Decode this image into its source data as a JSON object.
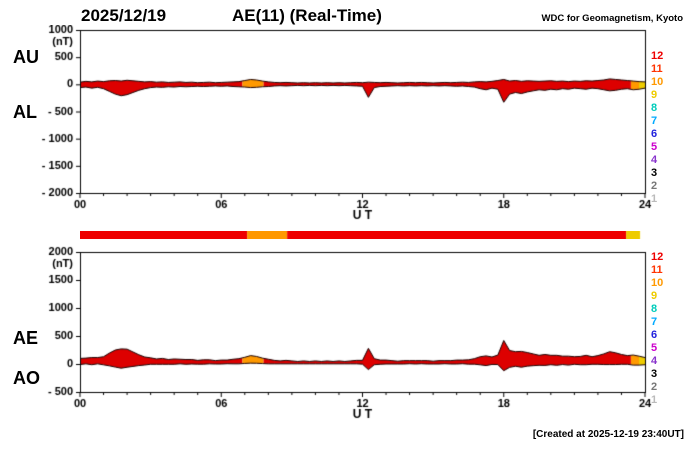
{
  "header": {
    "date": "2025/12/19",
    "title": "AE(11) (Real-Time)",
    "organization": "WDC for Geomagnetism, Kyoto"
  },
  "footer": {
    "created_note": "[Created at 2025-12-19 23:40UT]"
  },
  "legend": {
    "items": [
      {
        "label": "12",
        "color": "#ee0000"
      },
      {
        "label": "11",
        "color": "#ff3300"
      },
      {
        "label": "10",
        "color": "#ff9900"
      },
      {
        "label": "9",
        "color": "#eecc00"
      },
      {
        "label": "8",
        "color": "#00ccbb"
      },
      {
        "label": "7",
        "color": "#00aaff"
      },
      {
        "label": "6",
        "color": "#2222dd"
      },
      {
        "label": "5",
        "color": "#cc00cc"
      },
      {
        "label": "4",
        "color": "#8833cc"
      },
      {
        "label": "3",
        "color": "#000000"
      },
      {
        "label": "2",
        "color": "#777777"
      },
      {
        "label": "1",
        "color": "#bbbbbb"
      }
    ]
  },
  "quality_bar": {
    "xlim": [
      0,
      24
    ],
    "segments": [
      {
        "start": 0,
        "end": 7.1,
        "color": "#ee0000"
      },
      {
        "start": 7.1,
        "end": 8.8,
        "color": "#ff9900"
      },
      {
        "start": 8.8,
        "end": 23.2,
        "color": "#ee0000"
      },
      {
        "start": 23.2,
        "end": 23.8,
        "color": "#eecc00"
      },
      {
        "start": 23.8,
        "end": 24,
        "color": "#ffffff"
      }
    ]
  },
  "chart_data": [
    {
      "type": "area",
      "left_labels": [
        "AU",
        "AL"
      ],
      "ylabel": "(nT)",
      "xlabel": "U T",
      "ylim": [
        -2000,
        1000
      ],
      "ytick_values": [
        1000,
        500,
        0,
        -500,
        -1000,
        -1500,
        -2000
      ],
      "ytick_labels": [
        "1000",
        "500",
        "0",
        "- 500",
        "- 1000",
        "- 1500",
        "- 2000"
      ],
      "xlim": [
        0,
        24
      ],
      "xtick_values": [
        0,
        6,
        12,
        18,
        24
      ],
      "xtick_labels": [
        "00",
        "06",
        "12",
        "18",
        "24"
      ],
      "x_unit": "hours UT",
      "x_start": 0,
      "x_step": 0.25,
      "outline_color": "#1a0000",
      "color_segments": [
        {
          "start": 0,
          "end": 6.9,
          "color": "#dd0000"
        },
        {
          "start": 6.9,
          "end": 7.8,
          "color": "#ff9900"
        },
        {
          "start": 7.8,
          "end": 23.4,
          "color": "#dd0000"
        },
        {
          "start": 23.4,
          "end": 23.75,
          "color": "#ff9900"
        },
        {
          "start": 23.75,
          "end": 24,
          "color": "#eecc00"
        }
      ],
      "series": [
        {
          "name": "AU",
          "values": [
            40,
            55,
            45,
            60,
            50,
            65,
            70,
            60,
            75,
            65,
            55,
            45,
            50,
            40,
            45,
            35,
            40,
            45,
            35,
            40,
            30,
            35,
            40,
            30,
            35,
            40,
            45,
            50,
            70,
            90,
            80,
            60,
            45,
            35,
            30,
            35,
            30,
            25,
            30,
            25,
            30,
            25,
            30,
            25,
            30,
            25,
            30,
            35,
            30,
            40,
            35,
            30,
            35,
            30,
            25,
            30,
            35,
            30,
            35,
            30,
            25,
            30,
            35,
            30,
            35,
            40,
            35,
            45,
            50,
            45,
            55,
            70,
            90,
            60,
            70,
            55,
            65,
            60,
            55,
            60,
            65,
            55,
            60,
            50,
            60,
            55,
            65,
            60,
            70,
            80,
            100,
            90,
            80,
            70,
            60,
            50,
            45
          ]
        },
        {
          "name": "AL",
          "values": [
            -60,
            -50,
            -70,
            -55,
            -80,
            -130,
            -180,
            -210,
            -190,
            -150,
            -110,
            -80,
            -60,
            -50,
            -55,
            -45,
            -50,
            -40,
            -45,
            -40,
            -35,
            -40,
            -35,
            -30,
            -35,
            -30,
            -40,
            -45,
            -50,
            -60,
            -55,
            -45,
            -40,
            -30,
            -25,
            -30,
            -25,
            -20,
            -25,
            -20,
            -25,
            -20,
            -25,
            -20,
            -25,
            -20,
            -25,
            -30,
            -35,
            -240,
            -60,
            -40,
            -35,
            -30,
            -25,
            -30,
            -25,
            -30,
            -25,
            -30,
            -25,
            -30,
            -25,
            -30,
            -35,
            -30,
            -40,
            -50,
            -80,
            -100,
            -70,
            -90,
            -330,
            -180,
            -150,
            -170,
            -140,
            -120,
            -100,
            -110,
            -90,
            -100,
            -80,
            -90,
            -70,
            -80,
            -90,
            -70,
            -80,
            -100,
            -120,
            -110,
            -90,
            -80,
            -100,
            -90,
            -70
          ]
        }
      ]
    },
    {
      "type": "area",
      "left_labels": [
        "AE",
        "AO"
      ],
      "ylabel": "(nT)",
      "xlabel": "U T",
      "ylim": [
        -500,
        2000
      ],
      "ytick_values": [
        2000,
        1500,
        1000,
        500,
        0,
        -500
      ],
      "ytick_labels": [
        "2000",
        "1500",
        "1000",
        "500",
        "0",
        "- 500"
      ],
      "xlim": [
        0,
        24
      ],
      "xtick_values": [
        0,
        6,
        12,
        18,
        24
      ],
      "xtick_labels": [
        "00",
        "06",
        "12",
        "18",
        "24"
      ],
      "x_unit": "hours UT",
      "x_start": 0,
      "x_step": 0.25,
      "outline_color": "#1a0000",
      "color_segments": [
        {
          "start": 0,
          "end": 6.9,
          "color": "#dd0000"
        },
        {
          "start": 6.9,
          "end": 7.8,
          "color": "#ff9900"
        },
        {
          "start": 7.8,
          "end": 23.4,
          "color": "#dd0000"
        },
        {
          "start": 23.4,
          "end": 23.75,
          "color": "#ff9900"
        },
        {
          "start": 23.75,
          "end": 24,
          "color": "#eecc00"
        }
      ],
      "series": [
        {
          "name": "AE",
          "values": [
            100,
            105,
            115,
            115,
            130,
            195,
            250,
            270,
            265,
            215,
            165,
            125,
            110,
            90,
            100,
            80,
            90,
            85,
            80,
            80,
            65,
            75,
            75,
            60,
            70,
            70,
            85,
            95,
            120,
            150,
            135,
            105,
            85,
            65,
            55,
            65,
            55,
            45,
            55,
            45,
            55,
            45,
            55,
            45,
            55,
            45,
            55,
            65,
            65,
            280,
            95,
            70,
            70,
            60,
            50,
            60,
            60,
            60,
            60,
            60,
            50,
            60,
            60,
            60,
            70,
            70,
            75,
            95,
            130,
            145,
            125,
            160,
            420,
            240,
            220,
            225,
            205,
            180,
            155,
            170,
            155,
            155,
            140,
            140,
            130,
            135,
            155,
            130,
            150,
            180,
            220,
            200,
            170,
            150,
            160,
            140,
            115
          ]
        },
        {
          "name": "AO",
          "values": [
            -10,
            3,
            -13,
            3,
            -15,
            -33,
            -55,
            -75,
            -58,
            -43,
            -28,
            -18,
            -5,
            -5,
            -5,
            -5,
            -5,
            3,
            -5,
            0,
            -3,
            -3,
            3,
            0,
            0,
            5,
            3,
            3,
            10,
            15,
            13,
            8,
            3,
            3,
            3,
            3,
            3,
            3,
            3,
            3,
            3,
            3,
            3,
            3,
            3,
            3,
            3,
            3,
            -3,
            -100,
            -13,
            -5,
            0,
            0,
            0,
            0,
            5,
            0,
            5,
            0,
            0,
            0,
            5,
            0,
            0,
            5,
            -3,
            -3,
            -15,
            -28,
            -8,
            -10,
            -120,
            -60,
            -40,
            -58,
            -38,
            -30,
            -23,
            -25,
            -13,
            -23,
            -10,
            -20,
            -5,
            -13,
            -13,
            -5,
            -5,
            -10,
            -10,
            -10,
            -5,
            -5,
            -20,
            -20,
            -13
          ]
        }
      ]
    }
  ]
}
